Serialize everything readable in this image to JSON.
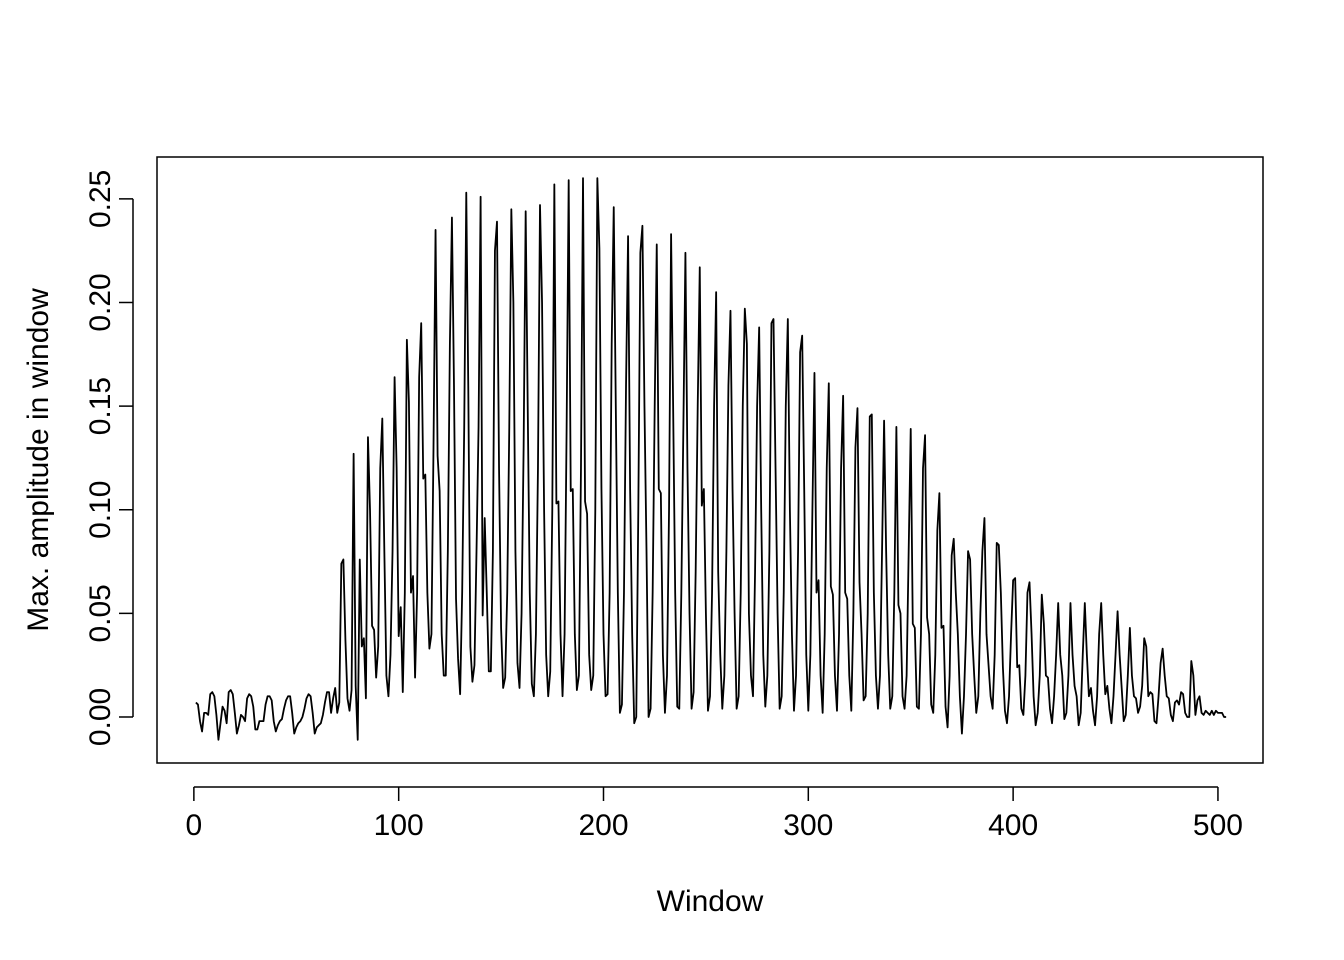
{
  "chart_data": {
    "type": "line",
    "title": "",
    "xlabel": "Window",
    "ylabel": "Max. amplitude in window",
    "xlim": [
      -18,
      522
    ],
    "ylim": [
      -0.0222,
      0.2702
    ],
    "x_ticks": [
      0,
      100,
      200,
      300,
      400,
      500
    ],
    "x_tick_labels": [
      "0",
      "100",
      "200",
      "300",
      "400",
      "500"
    ],
    "y_ticks": [
      0.0,
      0.05,
      0.1,
      0.15,
      0.2,
      0.25
    ],
    "y_tick_labels": [
      "0.00",
      "0.05",
      "0.10",
      "0.15",
      "0.20",
      "0.25"
    ],
    "grid": false,
    "legend": "none",
    "line_color": "#000000",
    "series": [
      {
        "x_start": 1,
        "x_step": 1,
        "values": [
          0.007,
          0.006,
          -0.002,
          -0.007,
          0.002,
          0.002,
          0.001,
          0.011,
          0.012,
          0.01,
          0.001,
          -0.011,
          -0.003,
          0.005,
          0.003,
          -0.003,
          0.012,
          0.013,
          0.011,
          0.002,
          -0.008,
          -0.004,
          0.001,
          0.0,
          -0.002,
          0.009,
          0.011,
          0.01,
          0.005,
          -0.006,
          -0.006,
          -0.002,
          -0.002,
          -0.002,
          0.006,
          0.01,
          0.01,
          0.008,
          -0.002,
          -0.007,
          -0.004,
          -0.002,
          -0.001,
          0.004,
          0.008,
          0.01,
          0.01,
          0.002,
          -0.008,
          -0.005,
          -0.003,
          -0.002,
          0.0,
          0.004,
          0.009,
          0.011,
          0.01,
          0.002,
          -0.008,
          -0.005,
          -0.004,
          -0.003,
          0.001,
          0.007,
          0.012,
          0.012,
          0.002,
          0.009,
          0.014,
          0.002,
          0.007,
          0.074,
          0.076,
          0.037,
          0.009,
          0.003,
          0.013,
          0.127,
          0.015,
          -0.011,
          0.076,
          0.034,
          0.038,
          0.009,
          0.135,
          0.1,
          0.044,
          0.042,
          0.019,
          0.034,
          0.12,
          0.144,
          0.08,
          0.02,
          0.01,
          0.03,
          0.08,
          0.164,
          0.12,
          0.039,
          0.053,
          0.012,
          0.06,
          0.182,
          0.152,
          0.06,
          0.068,
          0.019,
          0.06,
          0.164,
          0.19,
          0.115,
          0.117,
          0.06,
          0.033,
          0.04,
          0.13,
          0.235,
          0.126,
          0.109,
          0.04,
          0.02,
          0.02,
          0.08,
          0.18,
          0.241,
          0.16,
          0.057,
          0.028,
          0.011,
          0.06,
          0.14,
          0.253,
          0.157,
          0.034,
          0.017,
          0.025,
          0.08,
          0.14,
          0.251,
          0.049,
          0.096,
          0.06,
          0.022,
          0.022,
          0.08,
          0.225,
          0.239,
          0.12,
          0.043,
          0.014,
          0.019,
          0.06,
          0.14,
          0.245,
          0.2,
          0.08,
          0.026,
          0.014,
          0.05,
          0.13,
          0.244,
          0.15,
          0.06,
          0.016,
          0.01,
          0.04,
          0.12,
          0.247,
          0.2,
          0.1,
          0.03,
          0.01,
          0.022,
          0.1,
          0.257,
          0.103,
          0.104,
          0.04,
          0.01,
          0.04,
          0.14,
          0.259,
          0.109,
          0.11,
          0.04,
          0.013,
          0.02,
          0.12,
          0.26,
          0.104,
          0.098,
          0.03,
          0.013,
          0.02,
          0.1,
          0.26,
          0.226,
          0.11,
          0.04,
          0.01,
          0.011,
          0.06,
          0.18,
          0.246,
          0.15,
          0.06,
          0.002,
          0.006,
          0.06,
          0.16,
          0.232,
          0.11,
          0.04,
          -0.003,
          0.0,
          0.1,
          0.224,
          0.237,
          0.15,
          0.08,
          0.0,
          0.004,
          0.06,
          0.15,
          0.228,
          0.11,
          0.108,
          0.03,
          0.002,
          0.02,
          0.1,
          0.233,
          0.15,
          0.06,
          0.005,
          0.004,
          0.06,
          0.14,
          0.224,
          0.12,
          0.05,
          0.004,
          0.012,
          0.07,
          0.15,
          0.217,
          0.102,
          0.11,
          0.05,
          0.003,
          0.01,
          0.06,
          0.15,
          0.205,
          0.07,
          0.03,
          0.004,
          0.02,
          0.08,
          0.16,
          0.196,
          0.11,
          0.05,
          0.004,
          0.01,
          0.06,
          0.15,
          0.197,
          0.18,
          0.05,
          0.02,
          0.01,
          0.07,
          0.15,
          0.188,
          0.1,
          0.03,
          0.005,
          0.02,
          0.08,
          0.19,
          0.192,
          0.12,
          0.05,
          0.004,
          0.01,
          0.06,
          0.15,
          0.192,
          0.1,
          0.04,
          0.003,
          0.02,
          0.08,
          0.176,
          0.184,
          0.11,
          0.03,
          0.003,
          0.03,
          0.1,
          0.166,
          0.06,
          0.066,
          0.02,
          0.002,
          0.04,
          0.12,
          0.161,
          0.063,
          0.059,
          0.02,
          0.003,
          0.04,
          0.12,
          0.155,
          0.06,
          0.057,
          0.02,
          0.003,
          0.05,
          0.13,
          0.149,
          0.065,
          0.04,
          0.008,
          0.01,
          0.05,
          0.145,
          0.146,
          0.06,
          0.02,
          0.004,
          0.02,
          0.08,
          0.143,
          0.08,
          0.03,
          0.004,
          0.01,
          0.06,
          0.14,
          0.054,
          0.05,
          0.01,
          0.004,
          0.02,
          0.08,
          0.139,
          0.045,
          0.043,
          0.005,
          0.004,
          0.04,
          0.12,
          0.136,
          0.048,
          0.04,
          0.006,
          0.002,
          0.03,
          0.09,
          0.108,
          0.043,
          0.044,
          0.005,
          -0.005,
          0.02,
          0.078,
          0.086,
          0.06,
          0.04,
          0.01,
          -0.008,
          0.01,
          0.04,
          0.08,
          0.076,
          0.04,
          0.02,
          0.002,
          0.01,
          0.05,
          0.08,
          0.096,
          0.04,
          0.025,
          0.01,
          0.004,
          0.03,
          0.084,
          0.083,
          0.06,
          0.024,
          0.003,
          -0.003,
          0.01,
          0.04,
          0.066,
          0.067,
          0.024,
          0.025,
          0.004,
          0.001,
          0.02,
          0.06,
          0.065,
          0.04,
          0.01,
          -0.004,
          0.002,
          0.02,
          0.059,
          0.045,
          0.02,
          0.019,
          0.004,
          -0.003,
          0.01,
          0.03,
          0.055,
          0.03,
          0.02,
          -0.001,
          0.002,
          0.02,
          0.055,
          0.03,
          0.015,
          0.01,
          -0.004,
          0.002,
          0.03,
          0.055,
          0.03,
          0.01,
          0.014,
          0.003,
          -0.004,
          0.01,
          0.04,
          0.055,
          0.03,
          0.011,
          0.015,
          0.004,
          -0.003,
          0.01,
          0.03,
          0.051,
          0.03,
          0.014,
          -0.002,
          0.001,
          0.02,
          0.043,
          0.02,
          0.01,
          0.009,
          0.002,
          0.005,
          0.015,
          0.038,
          0.034,
          0.01,
          0.012,
          0.011,
          -0.002,
          -0.003,
          0.01,
          0.026,
          0.033,
          0.02,
          0.01,
          0.009,
          0.001,
          -0.002,
          0.007,
          0.008,
          0.006,
          0.012,
          0.011,
          0.002,
          0.0,
          0.0,
          0.027,
          0.02,
          0.001,
          0.008,
          0.01,
          0.002,
          0.001,
          0.003,
          0.002,
          0.001,
          0.003,
          0.001,
          0.003,
          0.002,
          0.002,
          0.002,
          0.0,
          0.0
        ]
      }
    ]
  }
}
